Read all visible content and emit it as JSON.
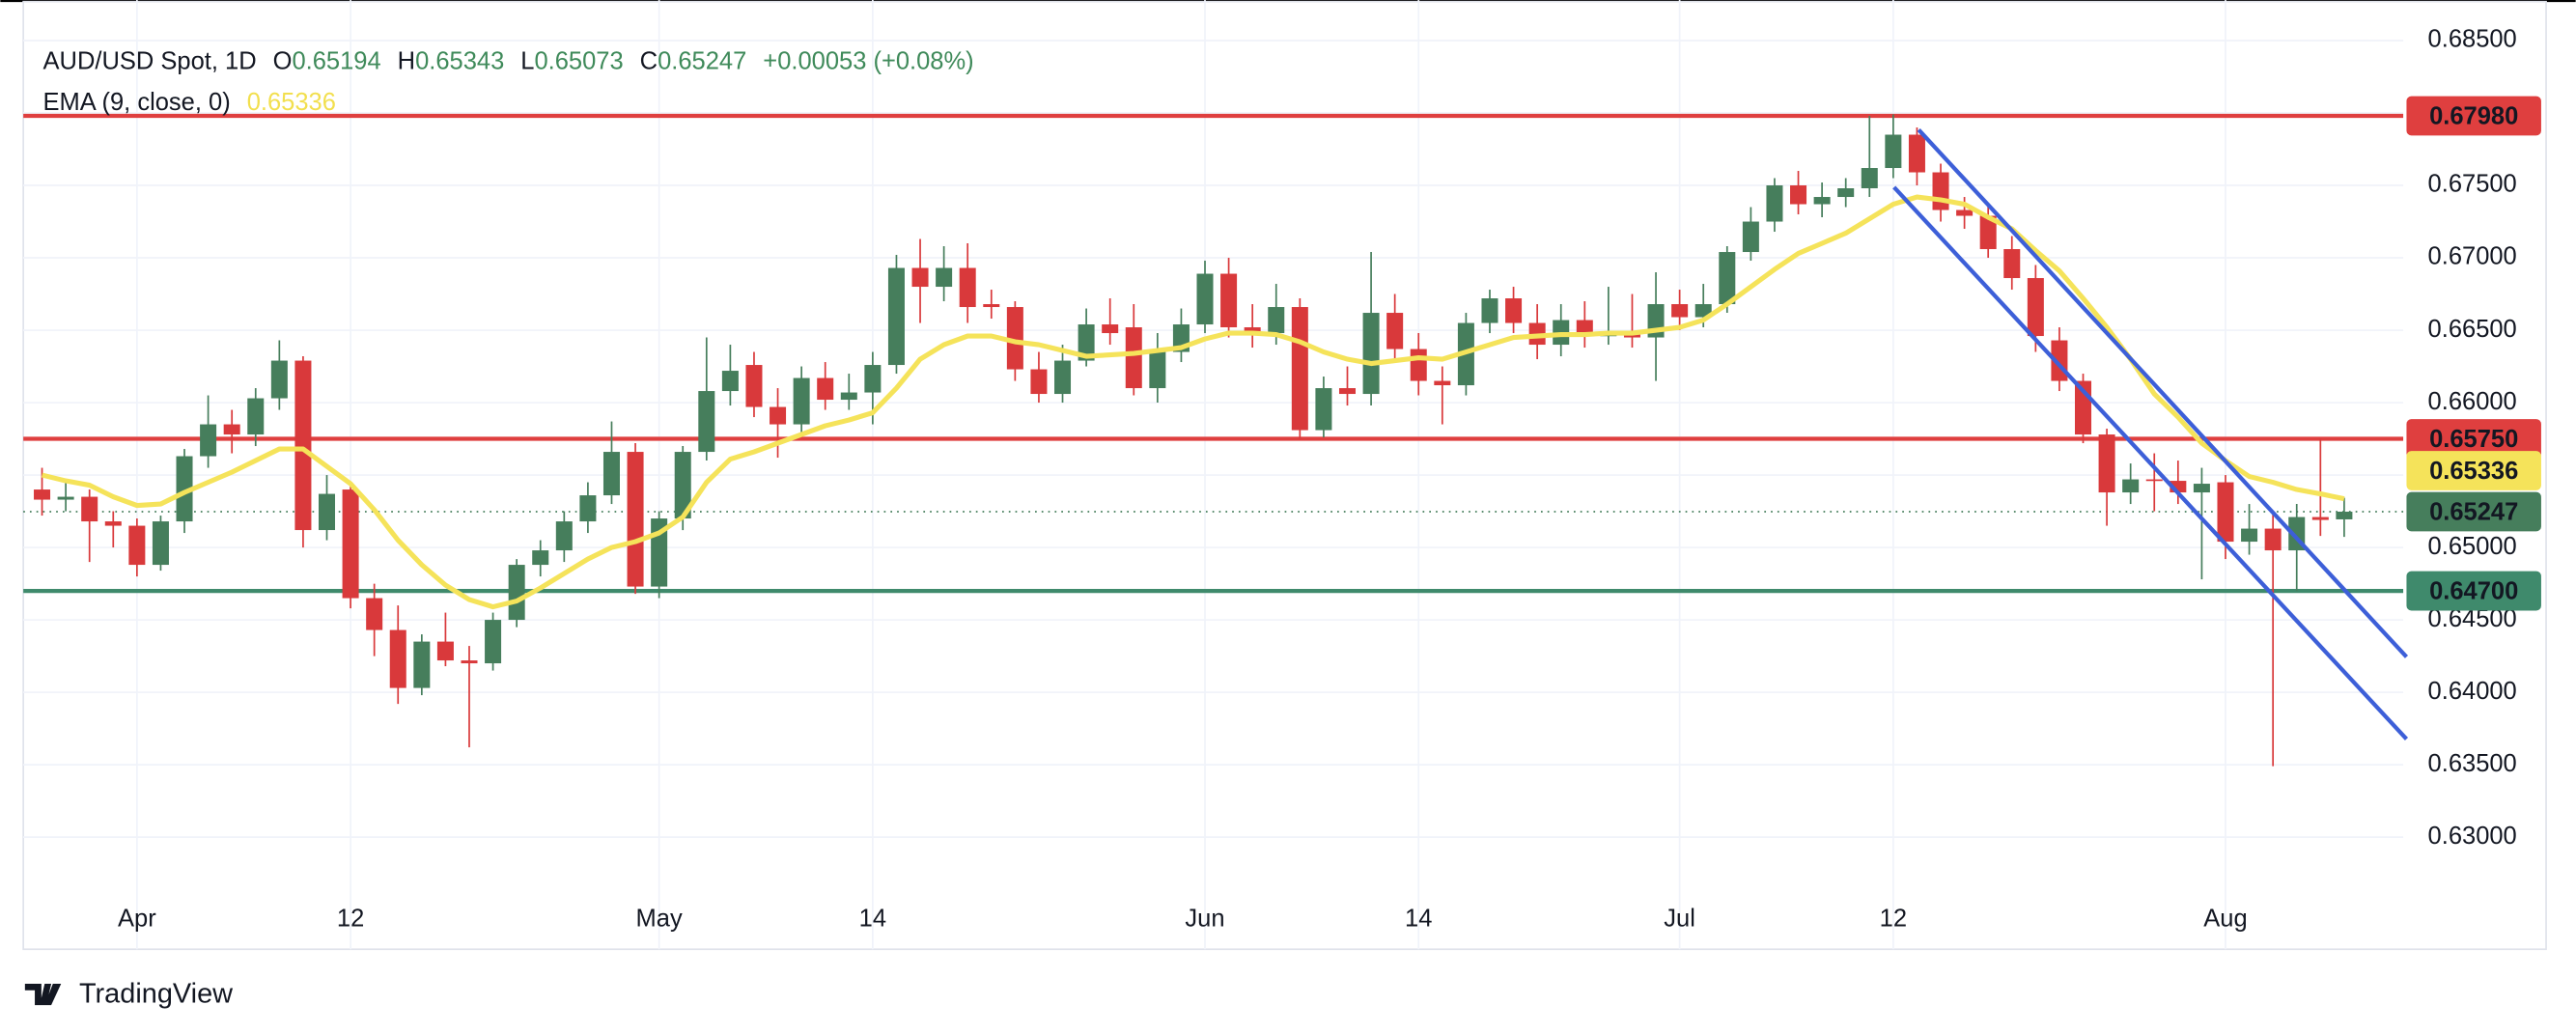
{
  "chart_data": {
    "type": "candlestick",
    "title": "AUD/USD Spot, 1D",
    "ohlc_header": [
      {
        "key": "O",
        "text": "0.65194"
      },
      {
        "key": "H",
        "text": "0.65343"
      },
      {
        "key": "L",
        "text": "0.65073"
      },
      {
        "key": "C",
        "text": "0.65247"
      }
    ],
    "change": "+0.00053 (+0.08%)",
    "categories": [
      null,
      null,
      null,
      null,
      "Apr",
      null,
      null,
      null,
      null,
      null,
      null,
      null,
      null,
      "12",
      null,
      null,
      null,
      null,
      null,
      null,
      null,
      null,
      null,
      null,
      null,
      null,
      "May",
      null,
      null,
      null,
      null,
      null,
      null,
      null,
      null,
      "14",
      null,
      null,
      null,
      null,
      null,
      null,
      null,
      null,
      null,
      null,
      null,
      null,
      null,
      "Jun",
      null,
      null,
      null,
      null,
      null,
      null,
      null,
      null,
      "14",
      null,
      null,
      null,
      null,
      null,
      null,
      null,
      null,
      null,
      null,
      "Jul",
      null,
      null,
      null,
      null,
      null,
      null,
      null,
      null,
      "12",
      null,
      null,
      null,
      null,
      null,
      null,
      null,
      null,
      null,
      null,
      null,
      null,
      null,
      "Aug",
      null,
      null,
      null,
      null,
      null
    ],
    "open": [
      0.654,
      0.6533,
      0.6535,
      0.6518,
      0.6515,
      0.6488,
      0.6518,
      0.6563,
      0.6585,
      0.6578,
      0.6603,
      0.6629,
      0.6512,
      0.654,
      0.6465,
      0.6443,
      0.6403,
      0.6435,
      0.6422,
      0.642,
      0.645,
      0.6488,
      0.6498,
      0.6518,
      0.6536,
      0.6566,
      0.6473,
      0.652,
      0.6566,
      0.6608,
      0.6626,
      0.6597,
      0.6585,
      0.6617,
      0.6602,
      0.6607,
      0.6626,
      0.6693,
      0.668,
      0.6693,
      0.6668,
      0.6666,
      0.6623,
      0.6606,
      0.6629,
      0.6654,
      0.6652,
      0.661,
      0.6635,
      0.6654,
      0.6689,
      0.6652,
      0.6648,
      0.6666,
      0.6581,
      0.661,
      0.6606,
      0.6662,
      0.6637,
      0.6615,
      0.6612,
      0.6655,
      0.6672,
      0.6655,
      0.664,
      0.6657,
      0.6646,
      0.6647,
      0.6645,
      0.6668,
      0.6659,
      0.6668,
      0.6704,
      0.6725,
      0.675,
      0.6737,
      0.6742,
      0.6748,
      0.6762,
      0.6785,
      0.6759,
      0.6733,
      0.6729,
      0.6706,
      0.6686,
      0.6643,
      0.6615,
      0.6578,
      0.6538,
      0.6547,
      0.6546,
      0.6538,
      0.6545,
      0.6504,
      0.6513,
      0.6498,
      0.6521,
      0.65194
    ],
    "high": [
      0.6555,
      0.6545,
      0.654,
      0.6525,
      0.652,
      0.6522,
      0.6568,
      0.6605,
      0.6595,
      0.661,
      0.6643,
      0.6632,
      0.655,
      0.6545,
      0.6475,
      0.646,
      0.644,
      0.6455,
      0.6432,
      0.6455,
      0.6492,
      0.6505,
      0.6525,
      0.6545,
      0.6587,
      0.6572,
      0.6525,
      0.657,
      0.6645,
      0.664,
      0.6635,
      0.661,
      0.6625,
      0.6628,
      0.662,
      0.6635,
      0.6702,
      0.6713,
      0.6708,
      0.671,
      0.6678,
      0.667,
      0.6635,
      0.664,
      0.6665,
      0.6672,
      0.6668,
      0.6648,
      0.6665,
      0.6698,
      0.67,
      0.6668,
      0.6682,
      0.6672,
      0.6618,
      0.6625,
      0.6704,
      0.6675,
      0.6648,
      0.6625,
      0.6662,
      0.6678,
      0.668,
      0.6668,
      0.6668,
      0.667,
      0.668,
      0.6675,
      0.669,
      0.6678,
      0.6682,
      0.6708,
      0.6735,
      0.6755,
      0.676,
      0.6752,
      0.6755,
      0.6798,
      0.6799,
      0.679,
      0.6765,
      0.6742,
      0.6738,
      0.6715,
      0.6695,
      0.6652,
      0.662,
      0.6582,
      0.6558,
      0.6565,
      0.656,
      0.6555,
      0.655,
      0.653,
      0.6525,
      0.653,
      0.6575,
      0.65343
    ],
    "low": [
      0.6522,
      0.6525,
      0.649,
      0.65,
      0.648,
      0.6484,
      0.651,
      0.6555,
      0.6565,
      0.657,
      0.6595,
      0.65,
      0.6505,
      0.6458,
      0.6425,
      0.6392,
      0.6398,
      0.6418,
      0.6362,
      0.6415,
      0.6445,
      0.648,
      0.649,
      0.651,
      0.653,
      0.6468,
      0.6465,
      0.6512,
      0.656,
      0.6598,
      0.659,
      0.6562,
      0.6578,
      0.6595,
      0.6595,
      0.6585,
      0.662,
      0.6655,
      0.667,
      0.6655,
      0.6658,
      0.6615,
      0.66,
      0.66,
      0.6625,
      0.664,
      0.6605,
      0.66,
      0.6628,
      0.6648,
      0.6645,
      0.6638,
      0.664,
      0.6575,
      0.6576,
      0.6598,
      0.6598,
      0.6628,
      0.6605,
      0.6585,
      0.6605,
      0.6648,
      0.6648,
      0.663,
      0.6632,
      0.6638,
      0.664,
      0.6638,
      0.6615,
      0.665,
      0.6652,
      0.6662,
      0.6698,
      0.6718,
      0.673,
      0.6728,
      0.6735,
      0.6742,
      0.6755,
      0.675,
      0.6725,
      0.672,
      0.67,
      0.6678,
      0.6635,
      0.6608,
      0.6572,
      0.6515,
      0.653,
      0.6525,
      0.653,
      0.6478,
      0.6492,
      0.6495,
      0.6349,
      0.647,
      0.6508,
      0.65073
    ],
    "close": [
      0.6533,
      0.6535,
      0.6518,
      0.6515,
      0.6488,
      0.6518,
      0.6563,
      0.6585,
      0.6578,
      0.6603,
      0.6629,
      0.6512,
      0.6537,
      0.6465,
      0.6443,
      0.6403,
      0.6435,
      0.6422,
      0.642,
      0.645,
      0.6488,
      0.6498,
      0.6518,
      0.6536,
      0.6566,
      0.6473,
      0.652,
      0.6566,
      0.6608,
      0.6622,
      0.6597,
      0.6585,
      0.6617,
      0.6602,
      0.6607,
      0.6626,
      0.6693,
      0.668,
      0.6693,
      0.6666,
      0.6666,
      0.6623,
      0.6606,
      0.6629,
      0.6654,
      0.6648,
      0.661,
      0.6635,
      0.6654,
      0.6689,
      0.6652,
      0.6648,
      0.6666,
      0.6581,
      0.661,
      0.6606,
      0.6662,
      0.6637,
      0.6615,
      0.6612,
      0.6655,
      0.6672,
      0.6655,
      0.664,
      0.6657,
      0.6646,
      0.6647,
      0.6645,
      0.6668,
      0.6659,
      0.6668,
      0.6704,
      0.6725,
      0.675,
      0.6737,
      0.6742,
      0.6748,
      0.6762,
      0.6785,
      0.6759,
      0.6733,
      0.6729,
      0.6706,
      0.6686,
      0.6646,
      0.6615,
      0.6578,
      0.6538,
      0.6547,
      0.6546,
      0.6538,
      0.6544,
      0.6504,
      0.6513,
      0.6498,
      0.6521,
      0.6519,
      0.65247
    ],
    "up_color": "#467e5c",
    "down_color": "#d9393b",
    "ema": {
      "name": "EMA (9, close, 0)",
      "value_label": "0.65336",
      "color": "#f5e35a",
      "values": [
        0.655,
        0.6546,
        0.6543,
        0.6535,
        0.6529,
        0.653,
        0.6538,
        0.6545,
        0.6552,
        0.656,
        0.6568,
        0.6568,
        0.6556,
        0.6544,
        0.6526,
        0.6505,
        0.6488,
        0.6474,
        0.6464,
        0.6459,
        0.6463,
        0.6472,
        0.6482,
        0.6492,
        0.65,
        0.6504,
        0.651,
        0.6521,
        0.6545,
        0.6561,
        0.6566,
        0.6572,
        0.6578,
        0.6584,
        0.6588,
        0.6593,
        0.661,
        0.663,
        0.664,
        0.6646,
        0.6646,
        0.6642,
        0.664,
        0.6636,
        0.6632,
        0.6633,
        0.6634,
        0.6636,
        0.6638,
        0.6644,
        0.6648,
        0.6648,
        0.6647,
        0.6642,
        0.6635,
        0.663,
        0.6627,
        0.6629,
        0.6631,
        0.663,
        0.6635,
        0.664,
        0.6645,
        0.6646,
        0.6647,
        0.6647,
        0.6648,
        0.6648,
        0.665,
        0.6652,
        0.6657,
        0.6668,
        0.668,
        0.6692,
        0.6703,
        0.671,
        0.6717,
        0.6727,
        0.6737,
        0.6742,
        0.674,
        0.6737,
        0.6728,
        0.672,
        0.6705,
        0.6691,
        0.6672,
        0.6652,
        0.663,
        0.6606,
        0.659,
        0.6572,
        0.656,
        0.6549,
        0.6545,
        0.654,
        0.6537,
        0.65336
      ]
    },
    "levels": [
      {
        "value": 0.6798,
        "label": "0.67980",
        "color": "#df3f3f"
      },
      {
        "value": 0.6575,
        "label": "0.65750",
        "color": "#df3f3f"
      },
      {
        "value": 0.647,
        "label": "0.64700",
        "color": "#3f8a6c"
      }
    ],
    "last": {
      "value": 0.65247,
      "label": "0.65247"
    },
    "ylim": [
      0.626,
      0.6878
    ],
    "yticks": [
      {
        "value": 0.685,
        "label": "0.68500"
      },
      {
        "value": 0.68,
        "label": "0.68000"
      },
      {
        "value": 0.675,
        "label": "0.67500"
      },
      {
        "value": 0.67,
        "label": "0.67000"
      },
      {
        "value": 0.665,
        "label": "0.66500"
      },
      {
        "value": 0.66,
        "label": "0.66000"
      },
      {
        "value": 0.655,
        "label": "0.65500"
      },
      {
        "value": 0.65,
        "label": "0.65000"
      },
      {
        "value": 0.645,
        "label": "0.64500"
      },
      {
        "value": 0.64,
        "label": "0.64000"
      },
      {
        "value": 0.635,
        "label": "0.63500"
      },
      {
        "value": 0.63,
        "label": "0.63000"
      }
    ],
    "grid": true,
    "brand": "TradingView"
  }
}
